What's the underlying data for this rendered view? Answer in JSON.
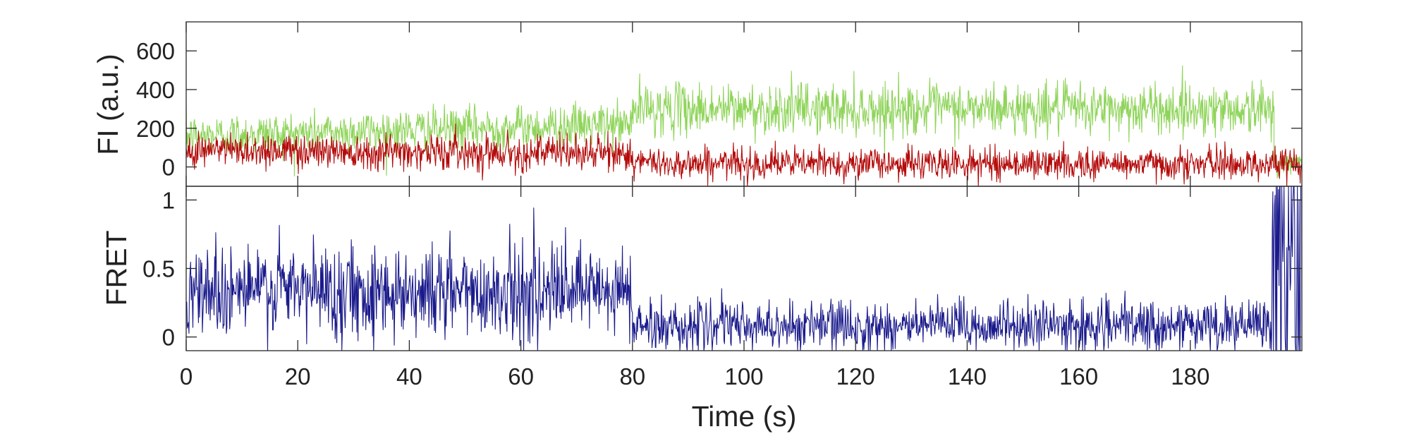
{
  "chart_data": [
    {
      "type": "line",
      "panel": "top",
      "ylabel": "FI (a.u.)",
      "xlim": [
        0,
        200
      ],
      "ylim": [
        -100,
        750
      ],
      "yticks": [
        0,
        200,
        400,
        600
      ],
      "ytick_labels": [
        "0",
        "200",
        "400",
        "600"
      ],
      "grid": false,
      "series": [
        {
          "color": "#8fd45a",
          "segments": [
            {
              "x_start": 0,
              "x_end": 80,
              "mean_start": 160,
              "mean_end": 220,
              "noise": 55
            },
            {
              "x_start": 80,
              "x_end": 195,
              "mean_start": 300,
              "mean_end": 300,
              "noise": 65
            },
            {
              "x_start": 195,
              "x_end": 200,
              "mean_start": 20,
              "mean_end": 20,
              "noise": 25
            }
          ]
        },
        {
          "color": "#b40a0a",
          "segments": [
            {
              "x_start": 0,
              "x_end": 80,
              "mean_start": 90,
              "mean_end": 70,
              "noise": 45
            },
            {
              "x_start": 80,
              "x_end": 200,
              "mean_start": 20,
              "mean_end": 15,
              "noise": 40
            }
          ]
        }
      ]
    },
    {
      "type": "line",
      "panel": "bottom",
      "xlabel": "Time (s)",
      "ylabel": "FRET",
      "xlim": [
        0,
        200
      ],
      "ylim": [
        -0.1,
        1.1
      ],
      "xticks": [
        0,
        20,
        40,
        60,
        80,
        100,
        120,
        140,
        160,
        180
      ],
      "xtick_labels": [
        "0",
        "20",
        "40",
        "60",
        "80",
        "100",
        "120",
        "140",
        "160",
        "180"
      ],
      "yticks": [
        0,
        0.5,
        1
      ],
      "ytick_labels": [
        "0",
        "0.5",
        "1"
      ],
      "grid": false,
      "series": [
        {
          "color": "#1a1a8c",
          "segments": [
            {
              "x_start": 0,
              "x_end": 80,
              "mean_start": 0.35,
              "mean_end": 0.32,
              "noise": 0.17
            },
            {
              "x_start": 80,
              "x_end": 194.5,
              "mean_start": 0.08,
              "mean_end": 0.08,
              "noise": 0.09
            },
            {
              "x_start": 194.5,
              "x_end": 200,
              "mean_start": 0.5,
              "mean_end": 0.5,
              "noise": 0.8
            }
          ]
        }
      ]
    }
  ]
}
